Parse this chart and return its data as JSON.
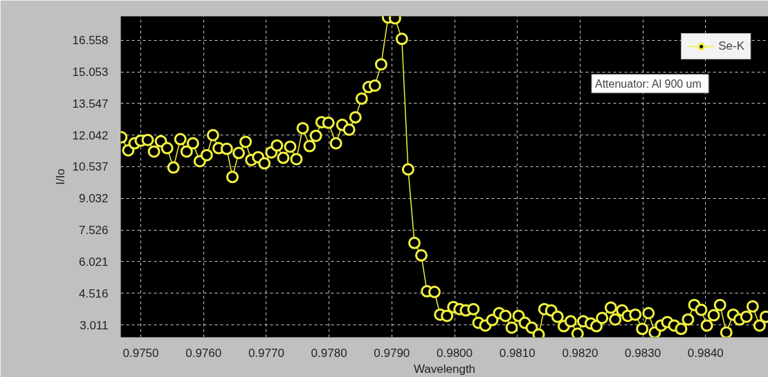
{
  "chart_data": {
    "type": "line",
    "xlabel": "Wavelength",
    "ylabel": "I/Io",
    "annotations": [
      "Attenuator: Al  900 um"
    ],
    "xlim": [
      0.97468,
      0.985
    ],
    "ylim": [
      2.42,
      17.7
    ],
    "xticks": [
      {
        "value": 0.975,
        "label": "0.9750"
      },
      {
        "value": 0.976,
        "label": "0.9760"
      },
      {
        "value": 0.977,
        "label": "0.9770"
      },
      {
        "value": 0.978,
        "label": "0.9780"
      },
      {
        "value": 0.979,
        "label": "0.9790"
      },
      {
        "value": 0.98,
        "label": "0.9800"
      },
      {
        "value": 0.981,
        "label": "0.9810"
      },
      {
        "value": 0.982,
        "label": "0.9820"
      },
      {
        "value": 0.983,
        "label": "0.9830"
      },
      {
        "value": 0.984,
        "label": "0.9840"
      }
    ],
    "yticks": [
      3.011,
      4.516,
      6.021,
      7.526,
      9.032,
      10.537,
      12.042,
      13.547,
      15.053,
      16.558
    ],
    "grid": true,
    "legend": "top right",
    "marker": "circle",
    "line_style": "solid",
    "x": [
      0.97469,
      0.9748,
      0.9749,
      0.975,
      0.97511,
      0.97521,
      0.97532,
      0.97542,
      0.97552,
      0.97563,
      0.97573,
      0.97583,
      0.97594,
      0.97605,
      0.97615,
      0.97624,
      0.97637,
      0.97646,
      0.97656,
      0.97667,
      0.97676,
      0.97687,
      0.97697,
      0.97708,
      0.97717,
      0.97727,
      0.97738,
      0.97748,
      0.97758,
      0.97769,
      0.97779,
      0.97788,
      0.97799,
      0.97811,
      0.97821,
      0.97832,
      0.97842,
      0.97852,
      0.97863,
      0.97873,
      0.97883,
      0.97894,
      0.97905,
      0.97916,
      0.97926,
      0.97936,
      0.97947,
      0.97956,
      0.97968,
      0.97977,
      0.97988,
      0.97998,
      0.98008,
      0.98018,
      0.9803,
      0.98038,
      0.98049,
      0.9806,
      0.98071,
      0.98081,
      0.98091,
      0.98102,
      0.98112,
      0.98123,
      0.98134,
      0.98143,
      0.98154,
      0.98164,
      0.98174,
      0.98185,
      0.98196,
      0.98205,
      0.98217,
      0.98226,
      0.98235,
      0.98249,
      0.98256,
      0.98267,
      0.98276,
      0.98288,
      0.98299,
      0.98309,
      0.98319,
      0.98329,
      0.98339,
      0.9835,
      0.98361,
      0.98372,
      0.98382,
      0.98393,
      0.98402,
      0.98413,
      0.98423,
      0.98433,
      0.98444,
      0.98454,
      0.98465,
      0.98475,
      0.98486,
      0.98496
    ],
    "series": [
      {
        "name": "Se-K",
        "color": "#f2f23c",
        "values": [
          11.94,
          11.32,
          11.65,
          11.78,
          11.81,
          11.26,
          11.75,
          11.42,
          10.5,
          11.85,
          11.26,
          11.65,
          10.8,
          11.09,
          12.04,
          11.42,
          11.39,
          10.05,
          11.19,
          11.72,
          10.86,
          10.99,
          10.7,
          11.22,
          11.55,
          10.96,
          11.49,
          10.9,
          12.37,
          11.52,
          12.01,
          12.66,
          12.63,
          11.65,
          12.53,
          12.3,
          12.89,
          13.78,
          14.33,
          14.4,
          15.41,
          17.64,
          17.6,
          16.62,
          10.41,
          6.91,
          6.32,
          4.61,
          4.58,
          3.5,
          3.44,
          3.86,
          3.76,
          3.7,
          3.76,
          3.11,
          2.98,
          3.24,
          3.57,
          3.44,
          2.88,
          3.44,
          3.11,
          2.88,
          2.55,
          3.76,
          3.7,
          3.4,
          2.95,
          3.18,
          2.59,
          3.18,
          3.08,
          2.95,
          3.34,
          3.83,
          3.27,
          3.7,
          3.44,
          3.5,
          2.82,
          3.57,
          2.65,
          2.98,
          3.14,
          2.98,
          2.82,
          3.27,
          3.96,
          3.73,
          2.98,
          3.47,
          3.96,
          2.65,
          3.5,
          3.27,
          3.4,
          3.89,
          2.98,
          3.4
        ]
      }
    ]
  }
}
